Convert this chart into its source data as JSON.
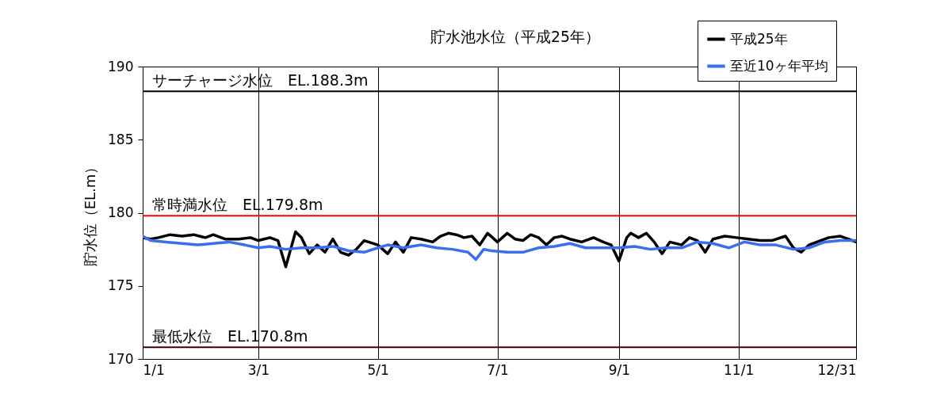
{
  "chart_data": {
    "type": "line",
    "title": "貯水池水位（平成25年）",
    "ylabel": "貯水位（EL.m）",
    "xlim": [
      "--01-01",
      "--12-31"
    ],
    "xticks": [
      {
        "value": "--01-01",
        "label": "1/1"
      },
      {
        "value": "--03-01",
        "label": "3/1"
      },
      {
        "value": "--05-01",
        "label": "5/1"
      },
      {
        "value": "--07-01",
        "label": "7/1"
      },
      {
        "value": "--09-01",
        "label": "9/1"
      },
      {
        "value": "--11-01",
        "label": "11/1"
      },
      {
        "value": "--12-31",
        "label": "12/31"
      }
    ],
    "ylim": [
      170,
      190
    ],
    "yticks": [
      170,
      175,
      180,
      185,
      190
    ],
    "grid": "x",
    "legend": "top right",
    "line_style": "solid",
    "marker": "none",
    "ref_lines": [
      {
        "axis": "y",
        "value": 188.3,
        "label": "サーチャージ水位　EL.188.3m",
        "color": "#000000"
      },
      {
        "axis": "y",
        "value": 179.8,
        "label": "常時満水位　EL.179.8m",
        "color": "#ff0000"
      },
      {
        "axis": "y",
        "value": 170.8,
        "label": "最低水位　EL.170.8m",
        "color": "#400000"
      }
    ],
    "series": [
      {
        "name": "平成25年",
        "color": "#000000",
        "x": [
          "--01-01",
          "--01-05",
          "--01-09",
          "--01-15",
          "--01-21",
          "--01-27",
          "--02-02",
          "--02-06",
          "--02-12",
          "--02-19",
          "--02-25",
          "--03-01",
          "--03-07",
          "--03-11",
          "--03-15",
          "--03-20",
          "--03-23",
          "--03-27",
          "--03-31",
          "--04-04",
          "--04-08",
          "--04-12",
          "--04-16",
          "--04-20",
          "--04-24",
          "--05-01",
          "--05-06",
          "--05-10",
          "--05-14",
          "--05-18",
          "--05-23",
          "--05-29",
          "--06-02",
          "--06-06",
          "--06-10",
          "--06-14",
          "--06-18",
          "--06-22",
          "--06-26",
          "--07-01",
          "--07-06",
          "--07-10",
          "--07-14",
          "--07-18",
          "--07-22",
          "--07-26",
          "--07-30",
          "--08-03",
          "--08-07",
          "--08-13",
          "--08-19",
          "--08-24",
          "--08-28",
          "--09-01",
          "--09-05",
          "--09-07",
          "--09-11",
          "--09-15",
          "--09-19",
          "--09-23",
          "--09-27",
          "--10-03",
          "--10-07",
          "--10-11",
          "--10-15",
          "--10-19",
          "--10-25",
          "--10-31",
          "--11-06",
          "--11-12",
          "--11-18",
          "--11-25",
          "--11-29",
          "--12-03",
          "--12-07",
          "--12-11",
          "--12-17",
          "--12-23",
          "--12-27",
          "--12-31"
        ],
        "values": [
          178.3,
          178.2,
          178.3,
          178.5,
          178.4,
          178.5,
          178.3,
          178.5,
          178.2,
          178.2,
          178.3,
          178.1,
          178.3,
          178.1,
          176.3,
          178.7,
          178.3,
          177.2,
          177.8,
          177.3,
          178.2,
          177.3,
          177.1,
          177.5,
          178.1,
          177.8,
          177.2,
          178.0,
          177.3,
          178.3,
          178.2,
          178.0,
          178.4,
          178.6,
          178.5,
          178.3,
          178.4,
          177.8,
          178.6,
          178.0,
          178.6,
          178.2,
          178.1,
          178.5,
          178.3,
          177.8,
          178.3,
          178.4,
          178.2,
          178.0,
          178.3,
          178.0,
          177.8,
          176.7,
          178.3,
          178.6,
          178.3,
          178.6,
          178.0,
          177.2,
          178.0,
          177.8,
          178.3,
          178.1,
          177.3,
          178.2,
          178.4,
          178.3,
          178.2,
          178.1,
          178.1,
          178.4,
          177.6,
          177.3,
          177.8,
          178.0,
          178.3,
          178.4,
          178.2,
          178.0
        ]
      },
      {
        "name": "至近10ヶ年平均",
        "color": "#3a6ef0",
        "x": [
          "--01-01",
          "--01-05",
          "--01-13",
          "--01-21",
          "--01-29",
          "--02-06",
          "--02-14",
          "--02-22",
          "--03-01",
          "--03-07",
          "--03-15",
          "--03-23",
          "--03-31",
          "--04-08",
          "--04-16",
          "--04-24",
          "--05-01",
          "--05-06",
          "--05-14",
          "--05-23",
          "--05-31",
          "--06-08",
          "--06-16",
          "--06-20",
          "--06-24",
          "--06-28",
          "--07-06",
          "--07-14",
          "--07-22",
          "--07-30",
          "--08-07",
          "--08-15",
          "--08-24",
          "--09-01",
          "--09-09",
          "--09-17",
          "--09-25",
          "--10-03",
          "--10-11",
          "--10-19",
          "--10-27",
          "--11-04",
          "--11-12",
          "--11-20",
          "--11-29",
          "--12-07",
          "--12-15",
          "--12-23",
          "--12-31"
        ],
        "values": [
          178.4,
          178.1,
          178.0,
          177.9,
          177.8,
          177.9,
          178.0,
          177.8,
          177.6,
          177.7,
          177.5,
          177.6,
          177.6,
          177.7,
          177.4,
          177.3,
          177.6,
          177.8,
          177.6,
          177.8,
          177.6,
          177.5,
          177.3,
          176.8,
          177.5,
          177.4,
          177.3,
          177.3,
          177.6,
          177.7,
          177.9,
          177.6,
          177.6,
          177.6,
          177.7,
          177.5,
          177.6,
          177.6,
          178.0,
          177.9,
          177.6,
          178.0,
          177.8,
          177.8,
          177.5,
          177.6,
          178.0,
          178.1,
          178.1
        ]
      }
    ]
  }
}
